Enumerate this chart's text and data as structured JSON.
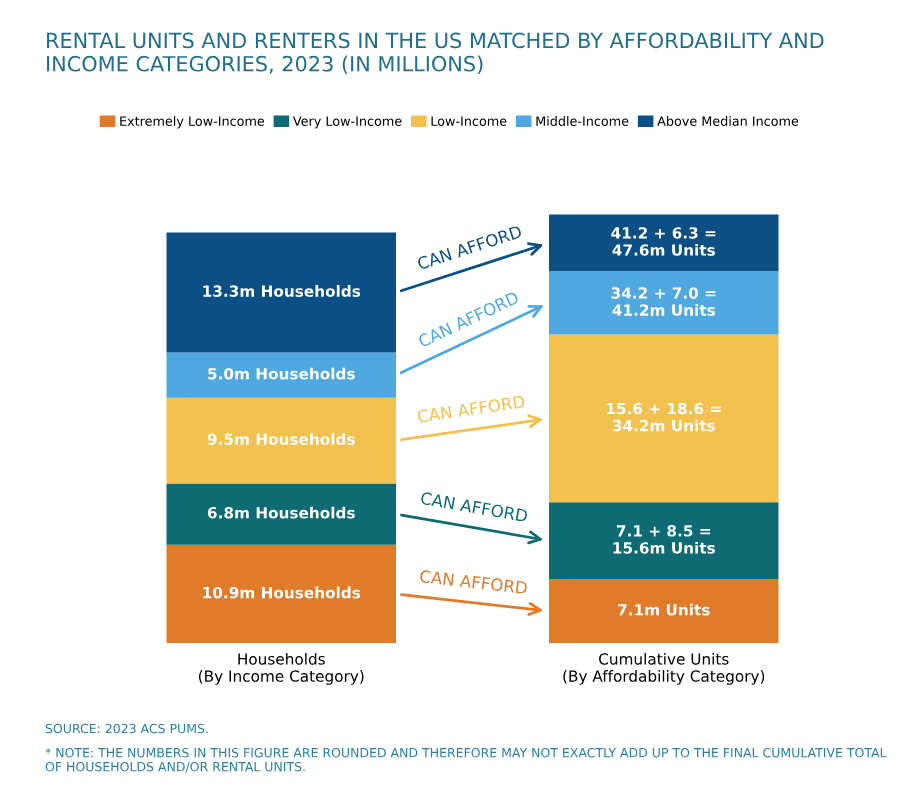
{
  "chart_data": {
    "type": "bar",
    "stacked": true,
    "title": "RENTAL UNITS AND RENTERS IN THE US MATCHED BY AFFORDABILITY AND INCOME CATEGORIES, 2023 (IN MILLIONS)",
    "categories": [
      "Households\n(By Income Category)",
      "Cumulative Units\n(By Affordability Category)"
    ],
    "series": [
      {
        "name": "Extremely Low-Income",
        "color": "#e07b2a",
        "values": [
          10.9,
          7.1
        ],
        "value_labels": [
          "10.9m Households",
          "7.1m Units"
        ]
      },
      {
        "name": "Very Low-Income",
        "color": "#0e6b73",
        "values": [
          6.8,
          8.5
        ],
        "value_labels": [
          "6.8m Households",
          "7.1 + 8.5 =\n15.6m Units"
        ]
      },
      {
        "name": "Low-Income",
        "color": "#f2c14e",
        "values": [
          9.5,
          18.6
        ],
        "value_labels": [
          "9.5m Households",
          "15.6 + 18.6 =\n34.2m Units"
        ]
      },
      {
        "name": "Middle-Income",
        "color": "#4fa8e0",
        "values": [
          5.0,
          7.0
        ],
        "value_labels": [
          "5.0m Households",
          "34.2 + 7.0 =\n41.2m Units"
        ]
      },
      {
        "name": "Above Median Income",
        "color": "#0b4f85",
        "values": [
          13.3,
          6.3
        ],
        "value_labels": [
          "13.3m Households",
          "41.2 + 6.3 =\n47.6m Units"
        ]
      }
    ],
    "annotations": [
      "CAN AFFORD",
      "CAN AFFORD",
      "CAN AFFORD",
      "CAN AFFORD",
      "CAN AFFORD",
      "SOURCE: 2023 ACS PUMS.",
      "* NOTE: THE NUMBERS IN THIS FIGURE ARE ROUNDED AND THEREFORE MAY NOT EXACTLY ADD UP TO THE FINAL CUMULATIVE TOTAL OF HOUSEHOLDS AND/OR RENTAL UNITS."
    ],
    "legend": "top",
    "grid": false
  }
}
